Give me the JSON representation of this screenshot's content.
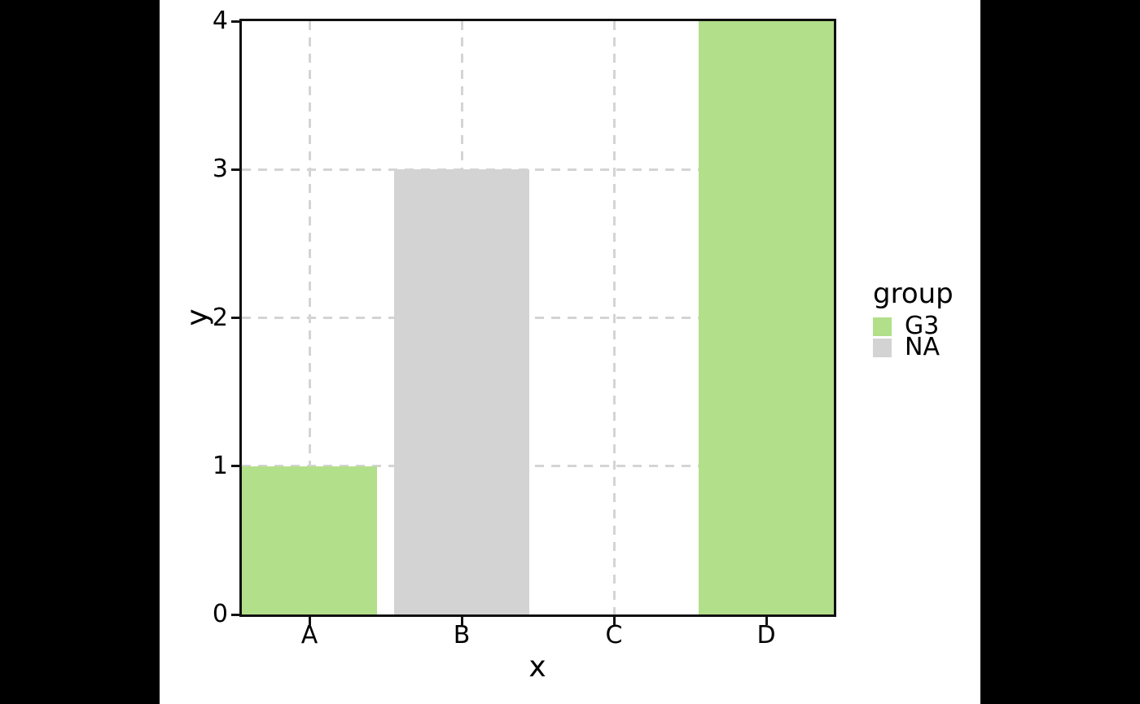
{
  "chart_data": {
    "type": "bar",
    "title": "",
    "xlabel": "x",
    "ylabel": "y",
    "categories": [
      "A",
      "B",
      "C",
      "D"
    ],
    "series": [
      {
        "x": "A",
        "y": 1,
        "group": "G3"
      },
      {
        "x": "B",
        "y": 3,
        "group": "NA"
      },
      {
        "x": "C",
        "y": 0,
        "group": null
      },
      {
        "x": "D",
        "y": 4,
        "group": "G3"
      }
    ],
    "ylim": [
      0,
      4
    ],
    "yticks": [
      0,
      1,
      2,
      3,
      4
    ],
    "bar_width_fraction": 0.89,
    "grid": {
      "style": "dashed",
      "horizontal": true,
      "vertical": true
    },
    "group_colors": {
      "G3": "#b2df8a",
      "NA": "#d3d3d3"
    },
    "legend": {
      "title": "group",
      "position": "right",
      "entries": [
        {
          "label": "G3",
          "color": "#b2df8a"
        },
        {
          "label": "NA",
          "color": "#d3d3d3"
        }
      ]
    }
  },
  "style": {
    "letterbox_color": "#000000",
    "background": "#ffffff",
    "axis_color": "#111111",
    "gridline_color": "#d4d4d4",
    "text_color": "#000000"
  }
}
